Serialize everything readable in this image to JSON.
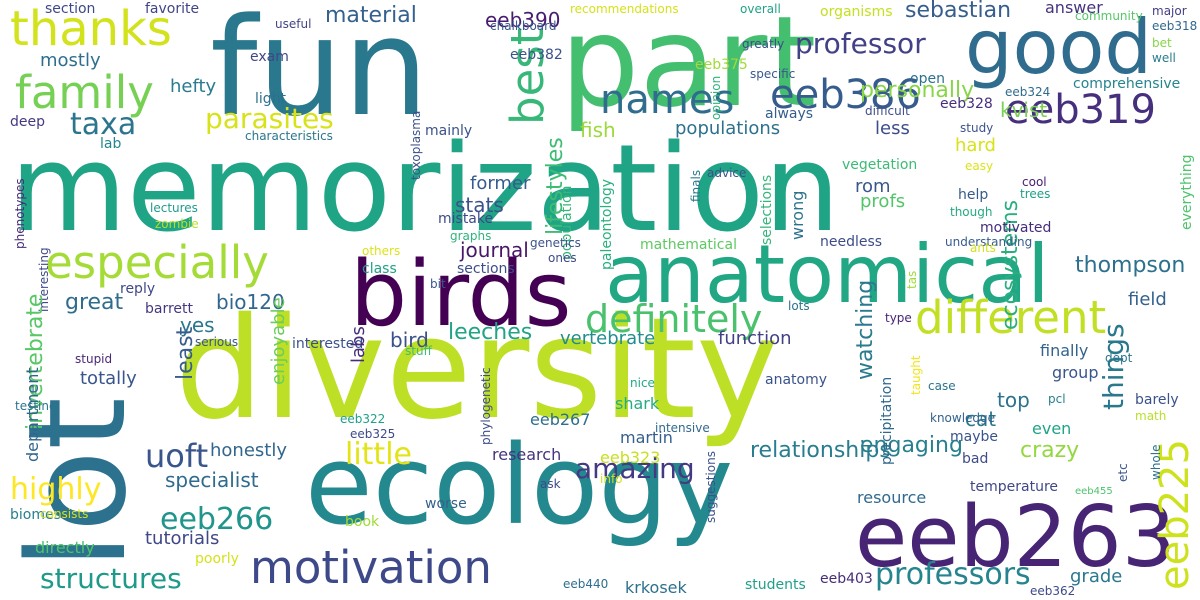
{
  "palette": {
    "dark_purple": "#440154",
    "purple": "#482878",
    "indigo": "#3e4989",
    "blue": "#31688e",
    "teal": "#26828e",
    "teal_green": "#1f9e89",
    "green": "#35b779",
    "light_green": "#6ece58",
    "lime": "#b5de2b",
    "yellow": "#fde725"
  },
  "words": [
    {
      "text": "memorization",
      "color": "#20a486"
    },
    {
      "text": "diversity",
      "color": "#bddf26"
    },
    {
      "text": "fun",
      "color": "#2a788e"
    },
    {
      "text": "part",
      "color": "#44bf70"
    },
    {
      "text": "ecology",
      "color": "#23898e"
    },
    {
      "text": "lot",
      "color": "#2c728e"
    },
    {
      "text": "eeb263",
      "color": "#482475"
    },
    {
      "text": "birds",
      "color": "#440154"
    },
    {
      "text": "anatomical",
      "color": "#22a785"
    },
    {
      "text": "good",
      "color": "#2f6c8e"
    },
    {
      "text": "thanks",
      "color": "#d2e21b"
    },
    {
      "text": "family",
      "color": "#75d054"
    },
    {
      "text": "best",
      "color": "#37b878"
    },
    {
      "text": "names",
      "color": "#2f6c8e"
    },
    {
      "text": "eeb319",
      "color": "#46307e"
    },
    {
      "text": "especially",
      "color": "#a5db36"
    },
    {
      "text": "different",
      "color": "#c2df23"
    },
    {
      "text": "motivation",
      "color": "#3e4989"
    },
    {
      "text": "eeb225",
      "color": "#cde11d"
    },
    {
      "text": "definitely",
      "color": "#4ac16d"
    },
    {
      "text": "eeb386",
      "color": "#365c8d"
    },
    {
      "text": "professor",
      "color": "#424086"
    },
    {
      "text": "taxa",
      "color": "#2b758e"
    },
    {
      "text": "parasites",
      "color": "#d8e219"
    },
    {
      "text": "material",
      "color": "#34618d"
    },
    {
      "text": "sebastian",
      "color": "#355e8d"
    },
    {
      "text": "personally",
      "color": "#89d548"
    },
    {
      "text": "eeb266",
      "color": "#1f958b"
    },
    {
      "text": "uoft",
      "color": "#39568c"
    },
    {
      "text": "structures",
      "color": "#1f9a8a"
    },
    {
      "text": "professors",
      "color": "#25848e"
    },
    {
      "text": "amazing",
      "color": "#443983"
    },
    {
      "text": "little",
      "color": "#e2e418"
    },
    {
      "text": "highly",
      "color": "#fde725"
    },
    {
      "text": "engaging",
      "color": "#27808e"
    },
    {
      "text": "things",
      "color": "#2a788e"
    },
    {
      "text": "relationships",
      "color": "#287d8e"
    },
    {
      "text": "thompson",
      "color": "#2d708e"
    },
    {
      "text": "ecosystems",
      "color": "#29af7f"
    },
    {
      "text": "lifestyles",
      "color": "#3dbc74"
    },
    {
      "text": "kvist",
      "color": "#7ad151"
    },
    {
      "text": "journal",
      "color": "#481769"
    },
    {
      "text": "stats",
      "color": "#3b528b"
    },
    {
      "text": "fish",
      "color": "#9dd93b"
    },
    {
      "text": "populations",
      "color": "#2c718e"
    },
    {
      "text": "less",
      "color": "#3d4d8a"
    },
    {
      "text": "hard",
      "color": "#d8e219"
    },
    {
      "text": "eeb390",
      "color": "#481c6e"
    },
    {
      "text": "hefty",
      "color": "#287c8e"
    },
    {
      "text": "mostly",
      "color": "#2e6f8e"
    },
    {
      "text": "section",
      "color": "#3f4889"
    },
    {
      "text": "favorite",
      "color": "#414487"
    },
    {
      "text": "exam",
      "color": "#3f4788"
    },
    {
      "text": "deep",
      "color": "#453882"
    },
    {
      "text": "light",
      "color": "#2d708e"
    },
    {
      "text": "lab",
      "color": "#25858e"
    },
    {
      "text": "answer",
      "color": "#46337f"
    },
    {
      "text": "eeb382",
      "color": "#3b528b"
    },
    {
      "text": "eeb375",
      "color": "#a2da37"
    },
    {
      "text": "recommendations",
      "color": "#d5e21a"
    },
    {
      "text": "overall",
      "color": "#20a386"
    },
    {
      "text": "organisms",
      "color": "#c5e021"
    },
    {
      "text": "major",
      "color": "#424086"
    },
    {
      "text": "eeb318",
      "color": "#31688e"
    },
    {
      "text": "bet",
      "color": "#86d549"
    },
    {
      "text": "well",
      "color": "#287d8e"
    },
    {
      "text": "community",
      "color": "#56c667"
    },
    {
      "text": "chalkboard",
      "color": "#375a8c"
    },
    {
      "text": "useful",
      "color": "#414487"
    },
    {
      "text": "greatly",
      "color": "#3c4f8a"
    },
    {
      "text": "specific",
      "color": "#38588c"
    },
    {
      "text": "opinion",
      "color": "#2fb47c"
    },
    {
      "text": "comprehensive",
      "color": "#25848e"
    },
    {
      "text": "open",
      "color": "#2c718e"
    },
    {
      "text": "eeb328",
      "color": "#472f7d"
    },
    {
      "text": "eeb324",
      "color": "#2f6b8e"
    },
    {
      "text": "always",
      "color": "#355e8d"
    },
    {
      "text": "difficult",
      "color": "#3d4e8a"
    },
    {
      "text": "study",
      "color": "#3b528b"
    },
    {
      "text": "easy",
      "color": "#dae319"
    },
    {
      "text": "cool",
      "color": "#482071"
    },
    {
      "text": "trees",
      "color": "#1f9f88"
    },
    {
      "text": "though",
      "color": "#23a983"
    },
    {
      "text": "zombie",
      "color": "#b5de2b"
    },
    {
      "text": "characteristics",
      "color": "#2a778e"
    },
    {
      "text": "toxoplasma",
      "color": "#3b528b"
    },
    {
      "text": "mainly",
      "color": "#3a538b"
    },
    {
      "text": "population",
      "color": "#34b679"
    },
    {
      "text": "paleontology",
      "color": "#2ab07f"
    },
    {
      "text": "finals",
      "color": "#2a788e"
    },
    {
      "text": "advice",
      "color": "#3b528b"
    },
    {
      "text": "selections",
      "color": "#34b679"
    },
    {
      "text": "vegetation",
      "color": "#3cbb75"
    },
    {
      "text": "rom",
      "color": "#38588c"
    },
    {
      "text": "profs",
      "color": "#52c569"
    },
    {
      "text": "wrong",
      "color": "#2c718e"
    },
    {
      "text": "former",
      "color": "#375b8d"
    },
    {
      "text": "mistake",
      "color": "#3e4989"
    },
    {
      "text": "lectures",
      "color": "#1f9a8a"
    },
    {
      "text": "graphs",
      "color": "#2fb47c"
    },
    {
      "text": "genetics",
      "color": "#3b528b"
    },
    {
      "text": "ones",
      "color": "#3f4889"
    },
    {
      "text": "sections",
      "color": "#3d4d8a"
    },
    {
      "text": "mathematical",
      "color": "#5ec962"
    },
    {
      "text": "needless",
      "color": "#3e4c8a"
    },
    {
      "text": "understanding",
      "color": "#365c8d"
    },
    {
      "text": "motivated",
      "color": "#472d7b"
    },
    {
      "text": "help",
      "color": "#375a8c"
    },
    {
      "text": "everything",
      "color": "#4ec36b"
    },
    {
      "text": "field",
      "color": "#34618d"
    },
    {
      "text": "ants",
      "color": "#d0e11c"
    },
    {
      "text": "tas",
      "color": "#a0da39"
    },
    {
      "text": "others",
      "color": "#dde318"
    },
    {
      "text": "interesting",
      "color": "#3e4989"
    },
    {
      "text": "phenotypes",
      "color": "#472a7a"
    },
    {
      "text": "class",
      "color": "#1fa188"
    },
    {
      "text": "bit",
      "color": "#38588c"
    },
    {
      "text": "great",
      "color": "#2f6c8e"
    },
    {
      "text": "reply",
      "color": "#3f4889"
    },
    {
      "text": "barrett",
      "color": "#453882"
    },
    {
      "text": "bio120",
      "color": "#31678e"
    },
    {
      "text": "yes",
      "color": "#2a778e"
    },
    {
      "text": "least",
      "color": "#365d8d"
    },
    {
      "text": "leeches",
      "color": "#20a386"
    },
    {
      "text": "bird",
      "color": "#3b518b"
    },
    {
      "text": "interested",
      "color": "#3b518b"
    },
    {
      "text": "enjoyable",
      "color": "#6ccd5a"
    },
    {
      "text": "stupid",
      "color": "#482878"
    },
    {
      "text": "serious",
      "color": "#39568c"
    },
    {
      "text": "stuff",
      "color": "#40bd72"
    },
    {
      "text": "labs",
      "color": "#472c7a"
    },
    {
      "text": "vertebrate",
      "color": "#228d8d"
    },
    {
      "text": "function",
      "color": "#424186"
    },
    {
      "text": "watching",
      "color": "#297b8e"
    },
    {
      "text": "type",
      "color": "#482475"
    },
    {
      "text": "taught",
      "color": "#f1e51d"
    },
    {
      "text": "dept",
      "color": "#2b758e"
    },
    {
      "text": "group",
      "color": "#39568c"
    },
    {
      "text": "finally",
      "color": "#33638d"
    },
    {
      "text": "lots",
      "color": "#2b748e"
    },
    {
      "text": "case",
      "color": "#2b748e"
    },
    {
      "text": "math",
      "color": "#bade28"
    },
    {
      "text": "pcl",
      "color": "#26818e"
    },
    {
      "text": "barely",
      "color": "#3b528b"
    },
    {
      "text": "invertebrate",
      "color": "#58c765"
    },
    {
      "text": "department",
      "color": "#32658e"
    },
    {
      "text": "totally",
      "color": "#39568c"
    },
    {
      "text": "testing",
      "color": "#2b748e"
    },
    {
      "text": "eeb325",
      "color": "#3e4a89"
    },
    {
      "text": "eeb322",
      "color": "#1fa088"
    },
    {
      "text": "phylogenetic",
      "color": "#3e4c8a"
    },
    {
      "text": "nice",
      "color": "#22a884"
    },
    {
      "text": "anatomy",
      "color": "#3a538b"
    },
    {
      "text": "shark",
      "color": "#25ac82"
    },
    {
      "text": "eeb267",
      "color": "#2e6e8e"
    },
    {
      "text": "martin",
      "color": "#355f8d"
    },
    {
      "text": "intensive",
      "color": "#31688e"
    },
    {
      "text": "precipitation",
      "color": "#31688e"
    },
    {
      "text": "top",
      "color": "#2c728e"
    },
    {
      "text": "cat",
      "color": "#2a788e"
    },
    {
      "text": "crazy",
      "color": "#93d741"
    },
    {
      "text": "knowledge",
      "color": "#33638d"
    },
    {
      "text": "maybe",
      "color": "#3a538b"
    },
    {
      "text": "even",
      "color": "#20a486"
    },
    {
      "text": "bad",
      "color": "#3e4c8a"
    },
    {
      "text": "temperature",
      "color": "#3f4788"
    },
    {
      "text": "eeb455",
      "color": "#4ec36b"
    },
    {
      "text": "etc",
      "color": "#38588c"
    },
    {
      "text": "whole",
      "color": "#2d708e"
    },
    {
      "text": "resource",
      "color": "#31688e"
    },
    {
      "text": "honestly",
      "color": "#31668e"
    },
    {
      "text": "eeb323",
      "color": "#c8e020"
    },
    {
      "text": "research",
      "color": "#46337f"
    },
    {
      "text": "specialist",
      "color": "#2f6b8e"
    },
    {
      "text": "tutorials",
      "color": "#3f4788"
    },
    {
      "text": "directly",
      "color": "#4ec36b"
    },
    {
      "text": "biomes",
      "color": "#277f8e"
    },
    {
      "text": "consists",
      "color": "#d5e21a"
    },
    {
      "text": "poorly",
      "color": "#d5e21a"
    },
    {
      "text": "book",
      "color": "#a0da39"
    },
    {
      "text": "worse",
      "color": "#34618d"
    },
    {
      "text": "ask",
      "color": "#3e4989"
    },
    {
      "text": "info",
      "color": "#cde11d"
    },
    {
      "text": "suggestions",
      "color": "#3b528b"
    },
    {
      "text": "students",
      "color": "#1f9e89"
    },
    {
      "text": "eeb403",
      "color": "#472c7a"
    },
    {
      "text": "grade",
      "color": "#2a788e"
    },
    {
      "text": "krkosek",
      "color": "#2c718e"
    },
    {
      "text": "eeb440",
      "color": "#2e6e8e"
    },
    {
      "text": "eeb362",
      "color": "#3e4a89"
    }
  ]
}
